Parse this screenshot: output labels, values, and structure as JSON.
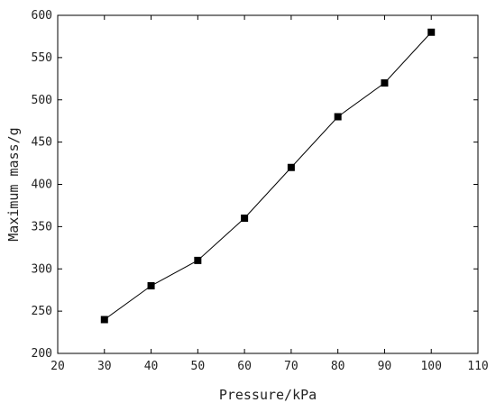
{
  "chart_data": {
    "type": "line",
    "xlabel": "Pressure/kPa",
    "ylabel": "Maximum mass/g",
    "xlim": [
      20,
      110
    ],
    "ylim": [
      200,
      600
    ],
    "xticks": [
      20,
      30,
      40,
      50,
      60,
      70,
      80,
      90,
      100,
      110
    ],
    "yticks": [
      200,
      250,
      300,
      350,
      400,
      450,
      500,
      550,
      600
    ],
    "marker": "square",
    "grid": false,
    "legend": "none",
    "series": [
      {
        "x": [
          30,
          40,
          50,
          60,
          70,
          80,
          90,
          100
        ],
        "y": [
          240,
          280,
          310,
          360,
          420,
          480,
          520,
          580
        ],
        "color": "#000000"
      }
    ]
  }
}
